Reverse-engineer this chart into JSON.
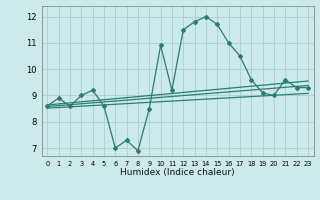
{
  "xlabel": "Humidex (Indice chaleur)",
  "xlim": [
    -0.5,
    23.5
  ],
  "ylim": [
    6.7,
    12.4
  ],
  "yticks": [
    7,
    8,
    9,
    10,
    11,
    12
  ],
  "xticks": [
    0,
    1,
    2,
    3,
    4,
    5,
    6,
    7,
    8,
    9,
    10,
    11,
    12,
    13,
    14,
    15,
    16,
    17,
    18,
    19,
    20,
    21,
    22,
    23
  ],
  "bg_color": "#cceaea",
  "grid_color": "#aacfcf",
  "line_color": "#2a7d70",
  "line_width": 0.9,
  "marker": "D",
  "marker_size": 2.0,
  "series_main": {
    "x": [
      0,
      1,
      2,
      3,
      4,
      5,
      6,
      7,
      8,
      9,
      10,
      11,
      12,
      13,
      14,
      15,
      16,
      17,
      18,
      19,
      20,
      21,
      22,
      23
    ],
    "y": [
      8.6,
      8.9,
      8.6,
      9.0,
      9.2,
      8.6,
      7.0,
      7.3,
      6.9,
      8.5,
      10.9,
      9.2,
      11.5,
      11.8,
      12.0,
      11.7,
      11.0,
      10.5,
      9.6,
      9.1,
      9.0,
      9.6,
      9.3,
      9.3
    ]
  },
  "trend_lines": [
    {
      "x": [
        0,
        23
      ],
      "y": [
        8.58,
        9.38
      ]
    },
    {
      "x": [
        0,
        23
      ],
      "y": [
        8.52,
        9.08
      ]
    },
    {
      "x": [
        0,
        23
      ],
      "y": [
        8.64,
        9.55
      ]
    }
  ]
}
